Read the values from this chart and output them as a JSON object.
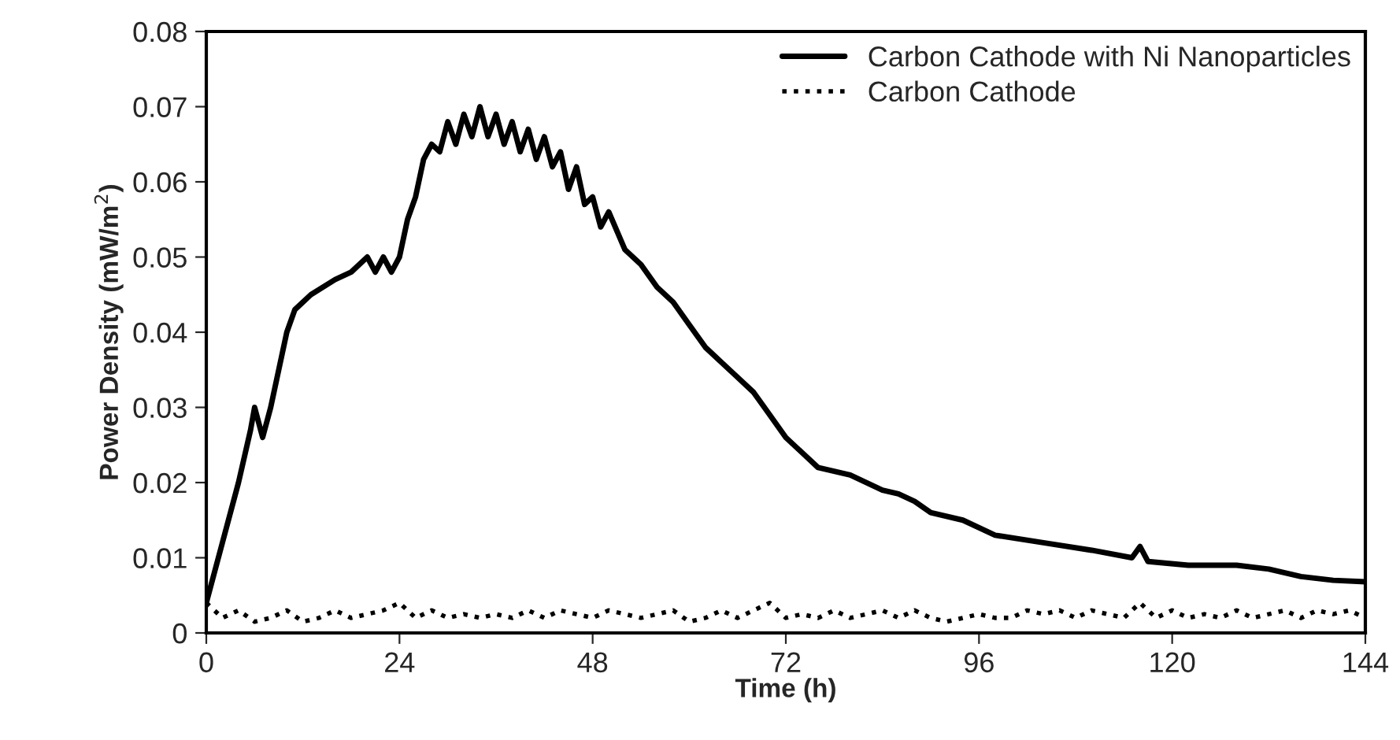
{
  "chart_data": {
    "type": "line",
    "xlabel": "Time (h)",
    "ylabel": "Power Density (mW/m$^{2}$)",
    "xlim": [
      0,
      144
    ],
    "xticks": [
      0,
      24,
      48,
      72,
      96,
      120,
      144
    ],
    "ylim": [
      0,
      0.08
    ],
    "yticks": [
      {
        "value": 0,
        "label": "0"
      },
      0.01,
      0.02,
      0.03,
      0.04,
      0.05,
      0.06,
      0.07,
      0.08
    ],
    "grid": false,
    "legend": "top right",
    "series": [
      {
        "name": "Carbon Cathode with Ni Nanoparticles",
        "color": "#000000",
        "line_style": "solid",
        "x": [
          0,
          2,
          4,
          5.5,
          6,
          7,
          8,
          10,
          11,
          13,
          16,
          18,
          20,
          21,
          22,
          23,
          24,
          25,
          26,
          27,
          28,
          29,
          30,
          31,
          32,
          33,
          34,
          35,
          36,
          37,
          38,
          39,
          40,
          41,
          42,
          43,
          44,
          45,
          46,
          47,
          48,
          49,
          50,
          52,
          54,
          56,
          58,
          60,
          62,
          64,
          66,
          68,
          70,
          72,
          74,
          76,
          80,
          84,
          86,
          88,
          90,
          94,
          98,
          104,
          110,
          115,
          116,
          117,
          122,
          128,
          132,
          136,
          140,
          144
        ],
        "values": [
          0.004,
          0.012,
          0.02,
          0.027,
          0.03,
          0.026,
          0.03,
          0.04,
          0.043,
          0.045,
          0.047,
          0.048,
          0.05,
          0.048,
          0.05,
          0.048,
          0.05,
          0.055,
          0.058,
          0.063,
          0.065,
          0.064,
          0.068,
          0.065,
          0.069,
          0.066,
          0.07,
          0.066,
          0.069,
          0.065,
          0.068,
          0.064,
          0.067,
          0.063,
          0.066,
          0.062,
          0.064,
          0.059,
          0.062,
          0.057,
          0.058,
          0.054,
          0.056,
          0.051,
          0.049,
          0.046,
          0.044,
          0.041,
          0.038,
          0.036,
          0.034,
          0.032,
          0.029,
          0.026,
          0.024,
          0.022,
          0.021,
          0.019,
          0.0185,
          0.0175,
          0.016,
          0.015,
          0.013,
          0.012,
          0.011,
          0.01,
          0.0115,
          0.0095,
          0.009,
          0.009,
          0.0085,
          0.0075,
          0.007,
          0.0068
        ]
      },
      {
        "name": "Carbon Cathode",
        "color": "#000000",
        "line_style": "dotted",
        "x": [
          0,
          2,
          4,
          6,
          8,
          10,
          12,
          14,
          16,
          18,
          20,
          22,
          24,
          26,
          28,
          30,
          32,
          34,
          36,
          38,
          40,
          42,
          44,
          46,
          48,
          50,
          52,
          54,
          56,
          58,
          60,
          62,
          64,
          66,
          68,
          70,
          72,
          74,
          76,
          78,
          80,
          82,
          84,
          86,
          88,
          90,
          92,
          94,
          96,
          98,
          100,
          102,
          104,
          106,
          108,
          110,
          112,
          114,
          116,
          118,
          120,
          122,
          124,
          126,
          128,
          130,
          132,
          134,
          136,
          138,
          140,
          142,
          144
        ],
        "values": [
          0.004,
          0.002,
          0.003,
          0.0015,
          0.002,
          0.003,
          0.0015,
          0.002,
          0.003,
          0.002,
          0.0025,
          0.003,
          0.004,
          0.002,
          0.003,
          0.002,
          0.0025,
          0.002,
          0.0025,
          0.002,
          0.003,
          0.002,
          0.003,
          0.0025,
          0.002,
          0.003,
          0.0025,
          0.002,
          0.0025,
          0.003,
          0.0015,
          0.002,
          0.003,
          0.002,
          0.003,
          0.004,
          0.002,
          0.0025,
          0.002,
          0.003,
          0.002,
          0.0025,
          0.003,
          0.002,
          0.003,
          0.002,
          0.0015,
          0.002,
          0.0025,
          0.002,
          0.002,
          0.003,
          0.0025,
          0.003,
          0.002,
          0.003,
          0.0025,
          0.002,
          0.004,
          0.002,
          0.003,
          0.002,
          0.0025,
          0.002,
          0.003,
          0.002,
          0.0025,
          0.003,
          0.002,
          0.003,
          0.0025,
          0.003,
          0.002
        ]
      }
    ]
  }
}
